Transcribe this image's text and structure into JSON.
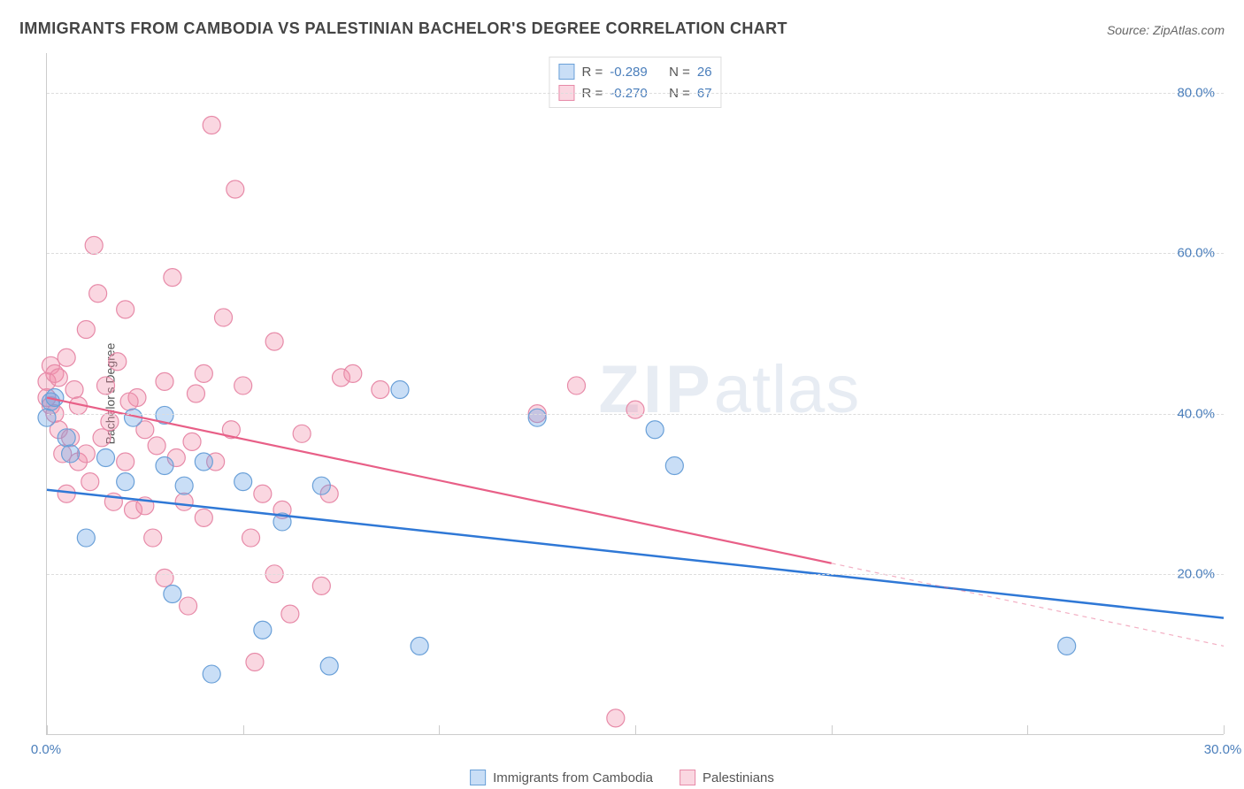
{
  "title": "IMMIGRANTS FROM CAMBODIA VS PALESTINIAN BACHELOR'S DEGREE CORRELATION CHART",
  "source": "Source: ZipAtlas.com",
  "watermark_zip": "ZIP",
  "watermark_rest": "atlas",
  "ylabel": "Bachelor's Degree",
  "chart": {
    "type": "scatter",
    "background_color": "#ffffff",
    "grid_color": "#dddddd",
    "axis_color": "#cccccc",
    "tick_label_color": "#4a7ebb",
    "xlim": [
      0,
      30
    ],
    "ylim": [
      0,
      85
    ],
    "y_ticks": [
      20,
      40,
      60,
      80
    ],
    "y_tick_labels": [
      "20.0%",
      "40.0%",
      "60.0%",
      "80.0%"
    ],
    "x_ticks": [
      0,
      5,
      10,
      15,
      20,
      25,
      30
    ],
    "x_tick_labels_shown": {
      "0": "0.0%",
      "30": "30.0%"
    },
    "marker_radius": 10,
    "marker_stroke_width": 1.2,
    "series": [
      {
        "key": "cambodia",
        "label": "Immigrants from Cambodia",
        "fill": "rgba(100,160,230,0.35)",
        "stroke": "#6aa0d8",
        "R": "-0.289",
        "N": "26",
        "trend": {
          "stroke": "#2f78d6",
          "width": 2.5,
          "dash_color": "#2f78d6",
          "x1": 0,
          "y1": 30.5,
          "x2": 30,
          "y2": 14.5,
          "solid_xmax": 30
        },
        "points": [
          [
            0.0,
            39.5
          ],
          [
            0.1,
            41.5
          ],
          [
            0.2,
            42.0
          ],
          [
            0.5,
            37.0
          ],
          [
            0.6,
            35.0
          ],
          [
            1.0,
            24.5
          ],
          [
            1.5,
            34.5
          ],
          [
            2.0,
            31.5
          ],
          [
            2.2,
            39.5
          ],
          [
            3.0,
            39.8
          ],
          [
            3.0,
            33.5
          ],
          [
            3.2,
            17.5
          ],
          [
            3.5,
            31.0
          ],
          [
            4.0,
            34.0
          ],
          [
            4.2,
            7.5
          ],
          [
            5.0,
            31.5
          ],
          [
            5.5,
            13.0
          ],
          [
            6.0,
            26.5
          ],
          [
            7.0,
            31.0
          ],
          [
            7.2,
            8.5
          ],
          [
            9.0,
            43.0
          ],
          [
            9.5,
            11.0
          ],
          [
            12.5,
            39.5
          ],
          [
            15.5,
            38.0
          ],
          [
            16.0,
            33.5
          ],
          [
            26.0,
            11.0
          ]
        ]
      },
      {
        "key": "palestinians",
        "label": "Palestinians",
        "fill": "rgba(240,140,170,0.35)",
        "stroke": "#e78aa8",
        "R": "-0.270",
        "N": "67",
        "trend": {
          "stroke": "#e85f87",
          "width": 2.2,
          "dash_color": "rgba(232,95,135,0.5)",
          "x1": 0,
          "y1": 42.0,
          "x2": 30,
          "y2": 11.0,
          "solid_xmax": 20
        },
        "points": [
          [
            0.0,
            42.0
          ],
          [
            0.0,
            44.0
          ],
          [
            0.1,
            41.0
          ],
          [
            0.1,
            46.0
          ],
          [
            0.2,
            45.0
          ],
          [
            0.2,
            40.0
          ],
          [
            0.3,
            38.0
          ],
          [
            0.3,
            44.5
          ],
          [
            0.4,
            35.0
          ],
          [
            0.5,
            47.0
          ],
          [
            0.6,
            37.0
          ],
          [
            0.7,
            43.0
          ],
          [
            0.8,
            34.0
          ],
          [
            0.8,
            41.0
          ],
          [
            1.0,
            50.5
          ],
          [
            1.0,
            35.0
          ],
          [
            1.2,
            61.0
          ],
          [
            1.3,
            55.0
          ],
          [
            1.4,
            37.0
          ],
          [
            1.5,
            43.5
          ],
          [
            1.6,
            39.0
          ],
          [
            1.7,
            29.0
          ],
          [
            1.8,
            46.5
          ],
          [
            2.0,
            53.0
          ],
          [
            2.0,
            34.0
          ],
          [
            2.2,
            28.0
          ],
          [
            2.3,
            42.0
          ],
          [
            2.5,
            38.0
          ],
          [
            2.5,
            28.5
          ],
          [
            2.7,
            24.5
          ],
          [
            2.8,
            36.0
          ],
          [
            3.0,
            44.0
          ],
          [
            3.0,
            19.5
          ],
          [
            3.2,
            57.0
          ],
          [
            3.3,
            34.5
          ],
          [
            3.5,
            29.0
          ],
          [
            3.6,
            16.0
          ],
          [
            3.7,
            36.5
          ],
          [
            4.0,
            45.0
          ],
          [
            4.0,
            27.0
          ],
          [
            4.2,
            76.0
          ],
          [
            4.5,
            52.0
          ],
          [
            4.7,
            38.0
          ],
          [
            4.8,
            68.0
          ],
          [
            5.0,
            43.5
          ],
          [
            5.2,
            24.5
          ],
          [
            5.3,
            9.0
          ],
          [
            5.5,
            30.0
          ],
          [
            5.8,
            49.0
          ],
          [
            5.8,
            20.0
          ],
          [
            6.0,
            28.0
          ],
          [
            6.2,
            15.0
          ],
          [
            6.5,
            37.5
          ],
          [
            7.0,
            18.5
          ],
          [
            7.2,
            30.0
          ],
          [
            7.5,
            44.5
          ],
          [
            7.8,
            45.0
          ],
          [
            8.5,
            43.0
          ],
          [
            12.5,
            40.0
          ],
          [
            13.5,
            43.5
          ],
          [
            14.5,
            2.0
          ],
          [
            15.0,
            40.5
          ],
          [
            0.5,
            30.0
          ],
          [
            1.1,
            31.5
          ],
          [
            2.1,
            41.5
          ],
          [
            3.8,
            42.5
          ],
          [
            4.3,
            34.0
          ]
        ]
      }
    ]
  },
  "top_legend_labels": {
    "R": "R =",
    "N": "N ="
  }
}
